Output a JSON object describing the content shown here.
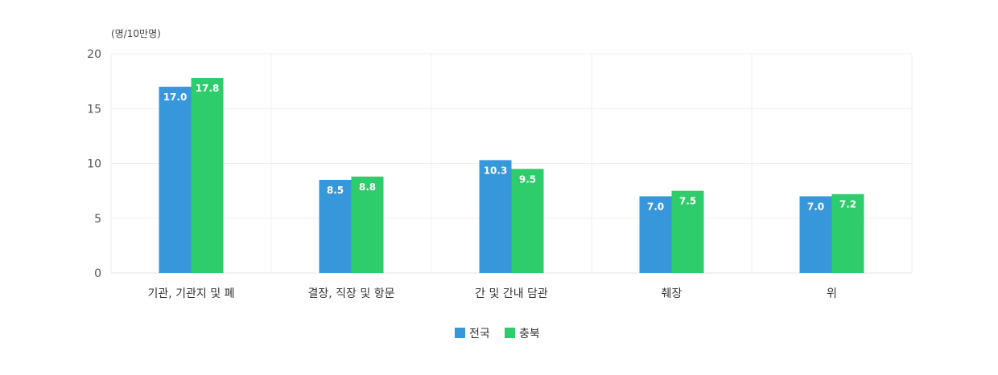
{
  "chart_data": {
    "type": "bar",
    "unit_label": "(명/10만명)",
    "categories": [
      "기관, 기관지 및 폐",
      "결장, 직장 및 항문",
      "간 및 간내 담관",
      "췌장",
      "위"
    ],
    "series": [
      {
        "name": "전국",
        "color": "#3797db",
        "values": [
          17.0,
          8.5,
          10.3,
          7.0,
          7.0
        ]
      },
      {
        "name": "충북",
        "color": "#2ecc6b",
        "values": [
          17.8,
          8.8,
          9.5,
          7.5,
          7.2
        ]
      }
    ],
    "y_ticks": [
      0,
      5,
      10,
      15,
      20
    ],
    "ylim": [
      0,
      20
    ],
    "grid": true,
    "legend_position": "bottom-center",
    "value_labels": true
  }
}
